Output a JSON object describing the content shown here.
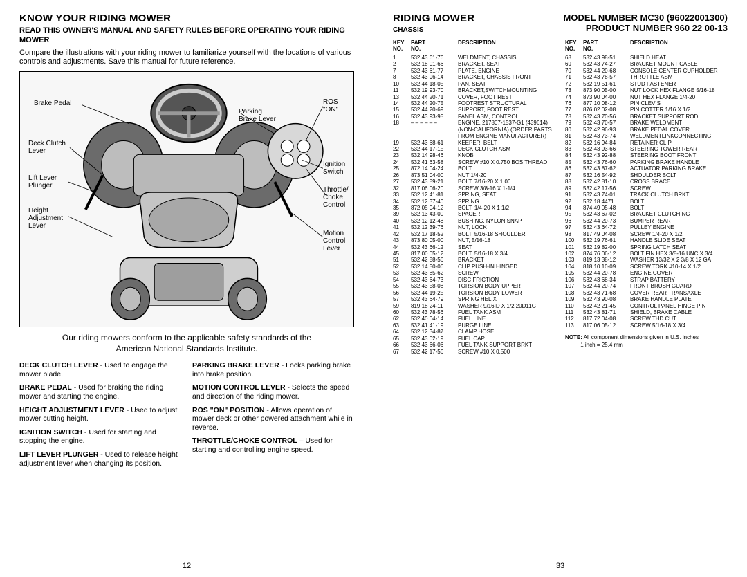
{
  "left": {
    "title": "KNOW YOUR RIDING MOWER",
    "subtitle": "READ THIS OWNER'S MANUAL AND SAFETY RULES BEFORE OPERATING YOUR RIDING MOWER",
    "intro": "Compare the illustrations with your riding mower to familiarize yourself with the locations of various controls and adjustments.  Save this manual for future reference.",
    "callouts": {
      "brake_pedal": "Brake Pedal",
      "deck_clutch": "Deck Clutch\nLever",
      "lift_lever": "Lift Lever\nPlunger",
      "height_adj": "Height\nAdjustment\nLever",
      "parking": "Parking\nBrake Lever",
      "ros_on": "ROS\n\"ON\"",
      "ignition": "Ignition\nSwitch",
      "throttle": "Throttle/\nChoke\nControl",
      "motion": "Motion\nControl\nLever"
    },
    "conform1": "Our riding mowers conform to the applicable safety standards of the",
    "conform2": "American National Standards Institute.",
    "defs_left": [
      {
        "t": "DECK CLUTCH LEVER",
        "d": " - Used to engage the mower blade."
      },
      {
        "t": "BRAKE PEDAL",
        "d": " - Used for braking the riding mower and starting the engine."
      },
      {
        "t": "HEIGHT ADJUSTMENT LEVER",
        "d": " - Used to adjust mower cutting height."
      },
      {
        "t": "IGNITION SWITCH",
        "d": " - Used for starting and stopping the engine."
      },
      {
        "t": "LIFT LEVER PLUNGER",
        "d": " - Used to release height adjustment lever when changing its position."
      }
    ],
    "defs_right": [
      {
        "t": "PARKING BRAKE LEVER",
        "d": " - Locks parking brake into brake position."
      },
      {
        "t": "MOTION CONTROL LEVER",
        "d": " - Selects the speed and direction of the riding mower."
      },
      {
        "t": "ROS \"ON\" POSITION",
        "d": " - Allows operation of mower deck or other powered attachment while in reverse."
      },
      {
        "t": "THROTTLE/CHOKE CONTROL",
        "d": " – Used for starting and controlling engine speed."
      }
    ],
    "page_num": "12"
  },
  "right": {
    "title": "RIDING MOWER",
    "chassis": "CHASSIS",
    "model": "MODEL NUMBER MC30 (96022001300)",
    "product": "PRODUCT NUMBER 960 22 00-13",
    "head_key": "KEY\nNO.",
    "head_part": "PART\nNO.",
    "head_desc": "DESCRIPTION",
    "col1": [
      [
        "1",
        "532 43 61-76",
        "WELDMENT, CHASSIS"
      ],
      [
        "2",
        "532 18 01-66",
        "BRACKET, SEAT"
      ],
      [
        "7",
        "532 43 61-77",
        "PLATE, ENGINE"
      ],
      [
        "8",
        "532 43 96-14",
        "BRACKET, CHASSIS FRONT"
      ],
      [
        "10",
        "532 44 18-05",
        "PAN, SEAT"
      ],
      [
        "11",
        "532 19 93-70",
        "BRACKET,SWITCHMOUNTING"
      ],
      [
        "13",
        "532 44 20-71",
        "COVER, FOOT REST"
      ],
      [
        "14",
        "532 44 20-75",
        "FOOTREST STRUCTURAL"
      ],
      [
        "15",
        "532 44 20-69",
        "SUPPORT, FOOT REST"
      ],
      [
        "16",
        "532 43 93-95",
        "PANEL ASM, CONTROL"
      ],
      [
        "18",
        "– – – – – –",
        "ENGINE, 217807-1537-G1 (439614) (NON-CALIFORNIA) (ORDER PARTS FROM ENGINE MANUFACTURER)"
      ],
      [
        "19",
        "532 43 68-61",
        "KEEPER, BELT"
      ],
      [
        "22",
        "532 44 17-15",
        "DECK CLUTCH ASM"
      ],
      [
        "23",
        "532 14 98-46",
        "KNOB"
      ],
      [
        "24",
        "532 41 63-58",
        "SCREW #10 X 0.750 BOS THREAD"
      ],
      [
        "25",
        "872 14 04-24",
        "BOLT"
      ],
      [
        "26",
        "873 51 04-00",
        "NUT 1/4-20"
      ],
      [
        "27",
        "532 43 89-21",
        "BOLT, 7/16-20 X 1.00"
      ],
      [
        "32",
        "817 06 06-20",
        "SCREW 3/8-16 X 1-1/4"
      ],
      [
        "33",
        "532 12 41-81",
        "SPRING, SEAT"
      ],
      [
        "34",
        "532 12 37-40",
        "SPRING"
      ],
      [
        "35",
        "872 05 04-12",
        "BOLT, 1/4-20 X 1 1/2"
      ],
      [
        "39",
        "532 13 43-00",
        "SPACER"
      ],
      [
        "40",
        "532 12 12-48",
        "BUSHING, NYLON SNAP"
      ],
      [
        "41",
        "532 12 39-76",
        "NUT, LOCK"
      ],
      [
        "42",
        "532 17 18-52",
        "BOLT, 5/16-18 SHOULDER"
      ],
      [
        "43",
        "873 80 05-00",
        "NUT, 5/16-18"
      ],
      [
        "44",
        "532 43 66-12",
        "SEAT"
      ],
      [
        "45",
        "817 00 05-12",
        "BOLT, 5/16-18 X 3/4"
      ],
      [
        "51",
        "532 42 88-56",
        "BRACKET"
      ],
      [
        "52",
        "532 14 50-06",
        "CLIP PUSH-IN HINGED"
      ],
      [
        "53",
        "532 43 85-62",
        "SCREW"
      ],
      [
        "54",
        "532 43 64-73",
        "DISC FRICTION"
      ],
      [
        "55",
        "532 43 58-08",
        "TORSION BODY UPPER"
      ],
      [
        "56",
        "532 44 19-25",
        "TORSION BODY LOWER"
      ],
      [
        "57",
        "532 43 64-79",
        "SPRING HELIX"
      ],
      [
        "59",
        "819 18 24-11",
        "WASHER 9/16ID X 1/2 20D11G"
      ],
      [
        "60",
        "532 43 78-56",
        "FUEL TANK ASM"
      ],
      [
        "62",
        "532 40 04-14",
        "FUEL LINE"
      ],
      [
        "63",
        "532 41 41-19",
        "PURGE LINE"
      ],
      [
        "64",
        "532 12 34-87",
        "CLAMP HOSE"
      ],
      [
        "65",
        "532 43 02-19",
        "FUEL CAP"
      ],
      [
        "66",
        "532 43 66-06",
        "FUEL TANK SUPPORT BRKT"
      ],
      [
        "67",
        "532 42 17-56",
        "SCREW #10 X 0.500"
      ]
    ],
    "col2": [
      [
        "68",
        "532 43 98-51",
        "SHIELD HEAT"
      ],
      [
        "69",
        "532 43 74-27",
        "BRACKET MOUNT CABLE"
      ],
      [
        "70",
        "532 44 20-68",
        "CONSOLE CENTER CUPHOLDER"
      ],
      [
        "71",
        "532 43 78-57",
        "THROTTLE ASM"
      ],
      [
        "72",
        "532 19 51-61",
        "STUD FASTENER"
      ],
      [
        "73",
        "873 90 05-00",
        "NUT LOCK HEX FLANGE 5/16-18"
      ],
      [
        "74",
        "873 90 04-00",
        "NUT HEX FLANGE 1/4-20"
      ],
      [
        "76",
        "877 10 08-12",
        "PIN CLEVIS"
      ],
      [
        "77",
        "876 02 02-08",
        "PIN COTTER 1/16 X 1/2"
      ],
      [
        "78",
        "532 43 70-56",
        "BRACKET SUPPORT ROD"
      ],
      [
        "79",
        "532 43 70-57",
        "BRAKE WELDMENT"
      ],
      [
        "80",
        "532 42 96-93",
        "BRAKE PEDAL COVER"
      ],
      [
        "81",
        "532 43 73-74",
        "WELDMENTLINKCONNECTING"
      ],
      [
        "82",
        "532 16 94-84",
        "RETAINER CLIP"
      ],
      [
        "83",
        "532 43 93-66",
        "STEERING TOWER REAR"
      ],
      [
        "84",
        "532 43 92-88",
        "STEERING BOOT FRONT"
      ],
      [
        "85",
        "532 43 76-60",
        "PARKING BRAKE HANDLE"
      ],
      [
        "86",
        "532 43 87-62",
        "ACTUATOR PARKING BRAKE"
      ],
      [
        "87",
        "532 16 54-92",
        "SHOULDER BOLT"
      ],
      [
        "88",
        "532 42 81-10",
        "CROSS BRACE"
      ],
      [
        "89",
        "532 42 17-56",
        "SCREW"
      ],
      [
        "91",
        "532 43 74-01",
        "TRACK CLUTCH BRKT"
      ],
      [
        "92",
        "532 18 4471",
        "BOLT"
      ],
      [
        "94",
        "874 49 05-48",
        "BOLT"
      ],
      [
        "95",
        "532 43 67-02",
        "BRACKET CLUTCHING"
      ],
      [
        "96",
        "532 44 20-73",
        "BUMPER REAR"
      ],
      [
        "97",
        "532 43 64-72",
        "PULLEY ENGINE"
      ],
      [
        "98",
        "817 49 04-08",
        "SCREW 1/4-20 X 1/2"
      ],
      [
        "100",
        "532 19 76-61",
        "HANDLE SLIDE SEAT"
      ],
      [
        "101",
        "532 19 82-00",
        "SPRING LATCH SEAT"
      ],
      [
        "102",
        "874 76 06-12",
        "BOLT FIN HEX 3/8-16 UNC X 3/4"
      ],
      [
        "103",
        "819 13 38-12",
        "WASHER 13/32 X 2 3/8 X 12 GA"
      ],
      [
        "104",
        "818 10 10-09",
        "SCREW TORK #10-14 X 1/2"
      ],
      [
        "105",
        "532 44 20-78",
        "ENGINE COVER"
      ],
      [
        "106",
        "532 43 68-34",
        "STRAP BATTERY"
      ],
      [
        "107",
        "532 44 20-74",
        "FRONT BRUSH GUARD"
      ],
      [
        "108",
        "532 43 71-68",
        "COVER REAR TRANSAXLE"
      ],
      [
        "109",
        "532 43 90-08",
        "BRAKE HANDLE PLATE"
      ],
      [
        "110",
        "532 42 21-45",
        "CONTROL PANEL HINGE PIN"
      ],
      [
        "111",
        "532 43 81-71",
        "SHIELD, BRAKE CABLE"
      ],
      [
        "112",
        "817 72 04-08",
        "SCREW THD CUT"
      ],
      [
        "113",
        "817 06 05-12",
        "SCREW 5/16-18 X 3/4"
      ]
    ],
    "note_label": "NOTE:",
    "note_text": " All component dimensions given in U.S. inches",
    "note_text2": "1 inch = 25.4 mm",
    "page_num": "33"
  }
}
